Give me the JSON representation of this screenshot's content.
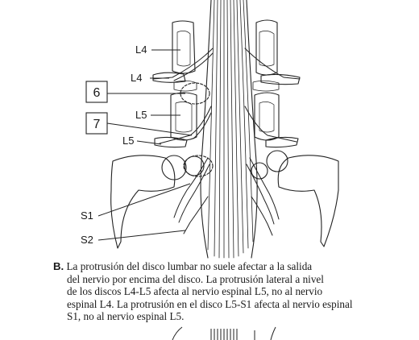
{
  "labels": {
    "l4_vertebra": "L4",
    "l4_nerve": "L4",
    "l5_vertebra": "L5",
    "l5_nerve": "L5",
    "s1_nerve": "S1",
    "s2_nerve": "S2",
    "box_6": "6",
    "box_7": "7"
  },
  "caption": {
    "marker": "B.",
    "line1": "La protrusión del disco lumbar no suele afectar a la salida",
    "line2": "del nervio por encima del disco. La protrusión lateral a nivel",
    "line3": "de los discos L4-L5 afecta al nervio espinal L5, no al nervio",
    "line4": "espinal L4. La protrusión en el disco L5-S1 afecta al nervio espinal",
    "line5": "S1, no al nervio espinal L5."
  }
}
